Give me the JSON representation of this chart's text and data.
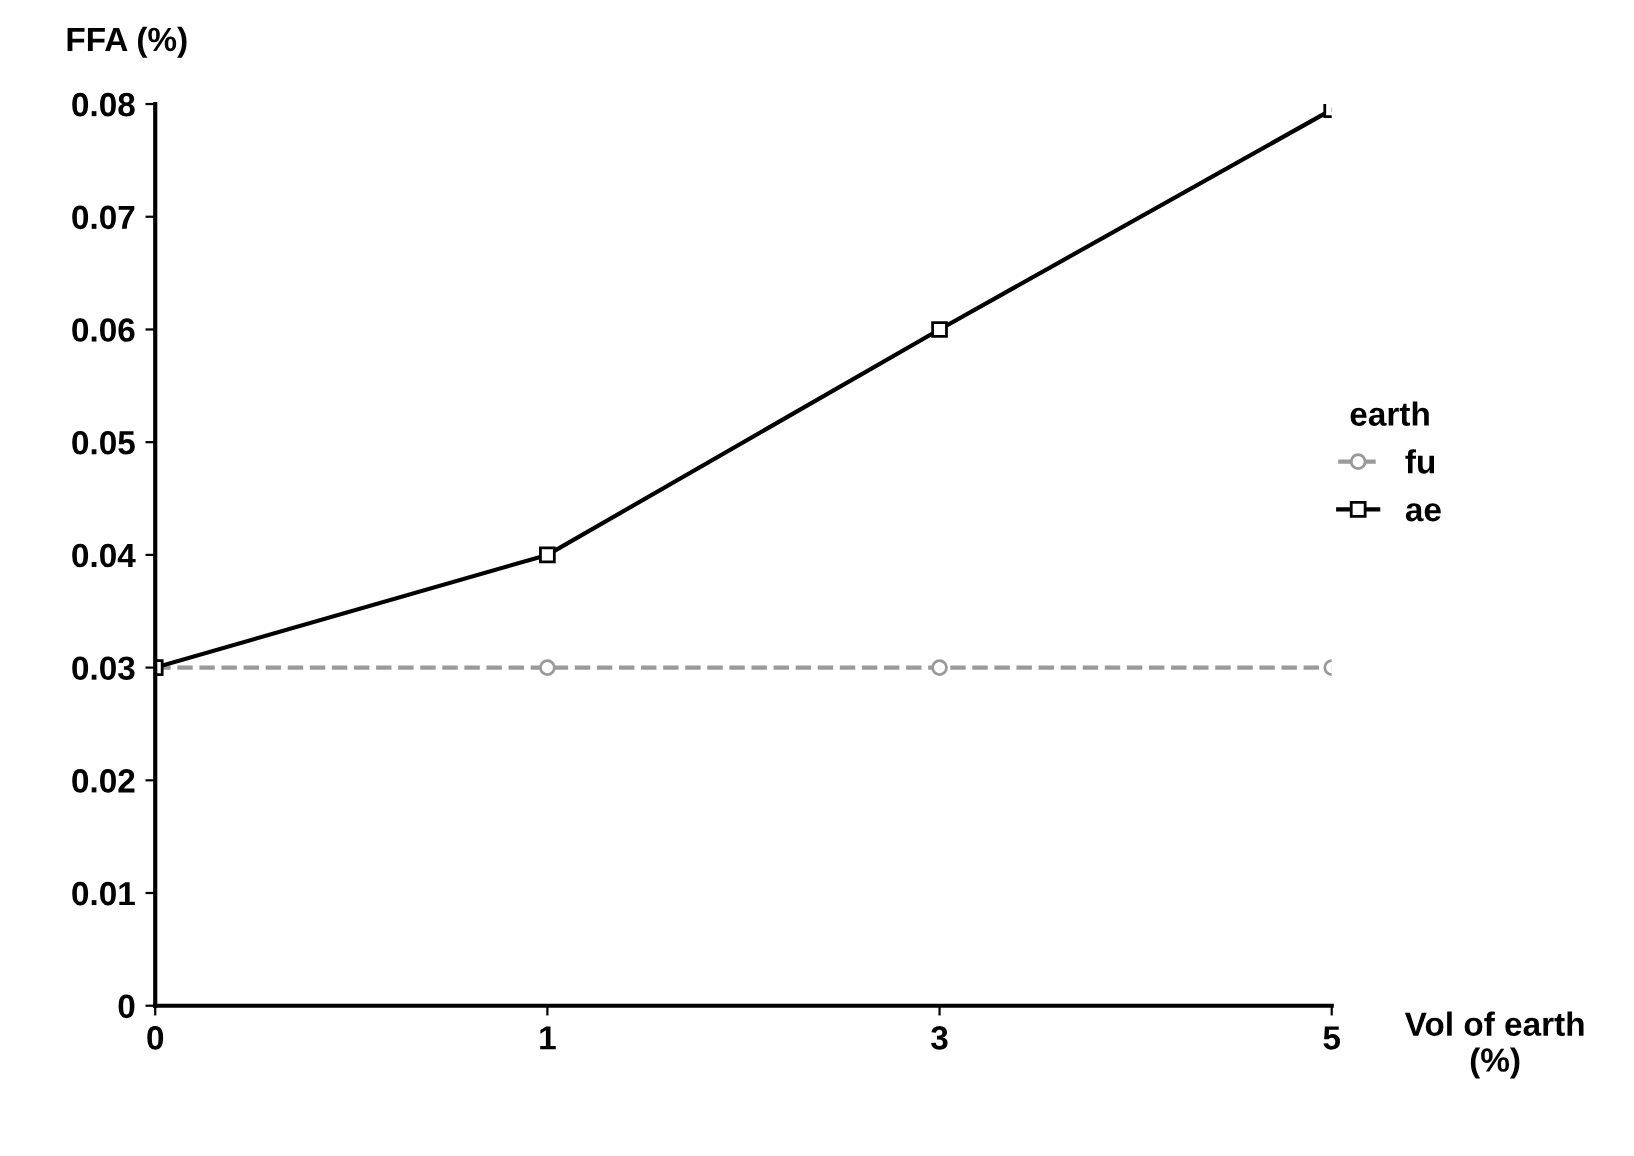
{
  "chart_data": {
    "type": "line",
    "xlabel": "Vol of earth\n(%)",
    "ylabel": "FFA (%)",
    "legend_title": "earth",
    "categories": [
      "0",
      "1",
      "3",
      "5"
    ],
    "series": [
      {
        "name": "fu",
        "color": "#9a9a9a",
        "values": [
          0.03,
          0.03,
          0.03,
          0.03
        ],
        "marker": "circle",
        "line_style": "dashed"
      },
      {
        "name": "ae",
        "color": "#000000",
        "values": [
          0.03,
          0.04,
          0.06,
          0.0795
        ],
        "marker": "square",
        "line_style": "solid"
      }
    ],
    "ylim": [
      0,
      0.08
    ],
    "yticks": [
      0,
      0.01,
      0.02,
      0.03,
      0.04,
      0.05,
      0.06,
      0.07,
      0.08
    ],
    "grid": false,
    "legend": "right"
  }
}
